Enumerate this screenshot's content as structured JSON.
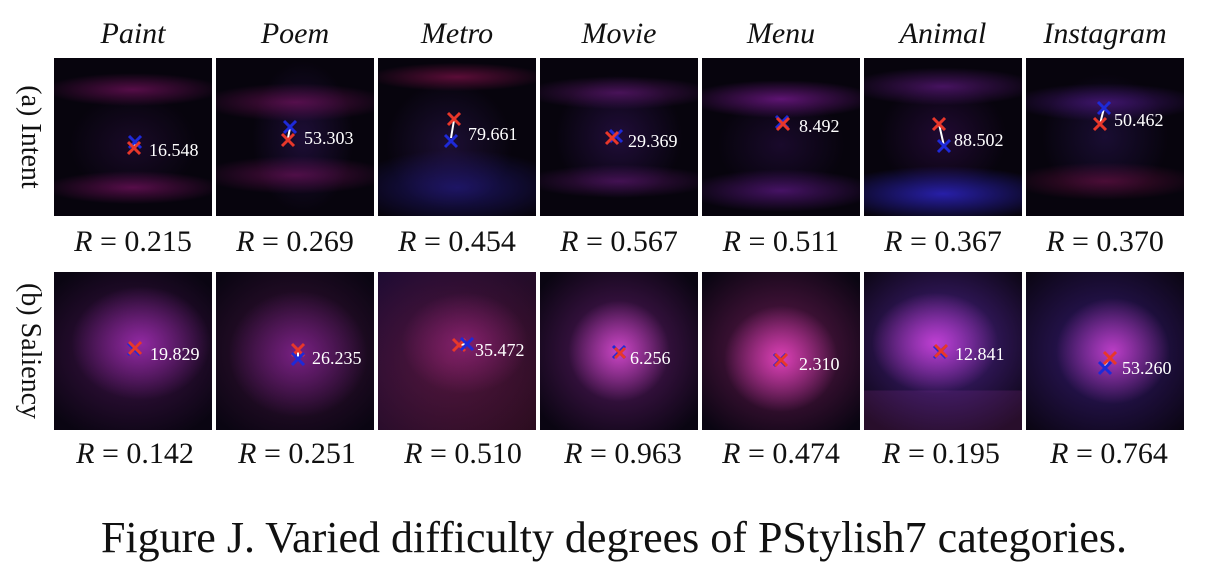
{
  "columns": [
    "Paint",
    "Poem",
    "Metro",
    "Movie",
    "Menu",
    "Animal",
    "Instagram"
  ],
  "rows": [
    {
      "label": "(a) Intent",
      "cells": [
        {
          "distance": "16.548",
          "r": "0.215"
        },
        {
          "distance": "53.303",
          "r": "0.269"
        },
        {
          "distance": "79.661",
          "r": "0.454"
        },
        {
          "distance": "29.369",
          "r": "0.567"
        },
        {
          "distance": "8.492",
          "r": "0.511"
        },
        {
          "distance": "88.502",
          "r": "0.367"
        },
        {
          "distance": "50.462",
          "r": "0.370"
        }
      ]
    },
    {
      "label": "(b) Saliency",
      "cells": [
        {
          "distance": "19.829",
          "r": "0.142"
        },
        {
          "distance": "26.235",
          "r": "0.251"
        },
        {
          "distance": "35.472",
          "r": "0.510"
        },
        {
          "distance": "6.256",
          "r": "0.963"
        },
        {
          "distance": "2.310",
          "r": "0.474"
        },
        {
          "distance": "12.841",
          "r": "0.195"
        },
        {
          "distance": "53.260",
          "r": "0.764"
        }
      ]
    }
  ],
  "r_symbol": "R",
  "equals": "=",
  "caption": "Figure J. Varied difficulty degrees of PStylish7 categories.",
  "colors": {
    "red_marker": "#e8372a",
    "blue_marker": "#1e2ad8",
    "connector": "#ffffff"
  }
}
